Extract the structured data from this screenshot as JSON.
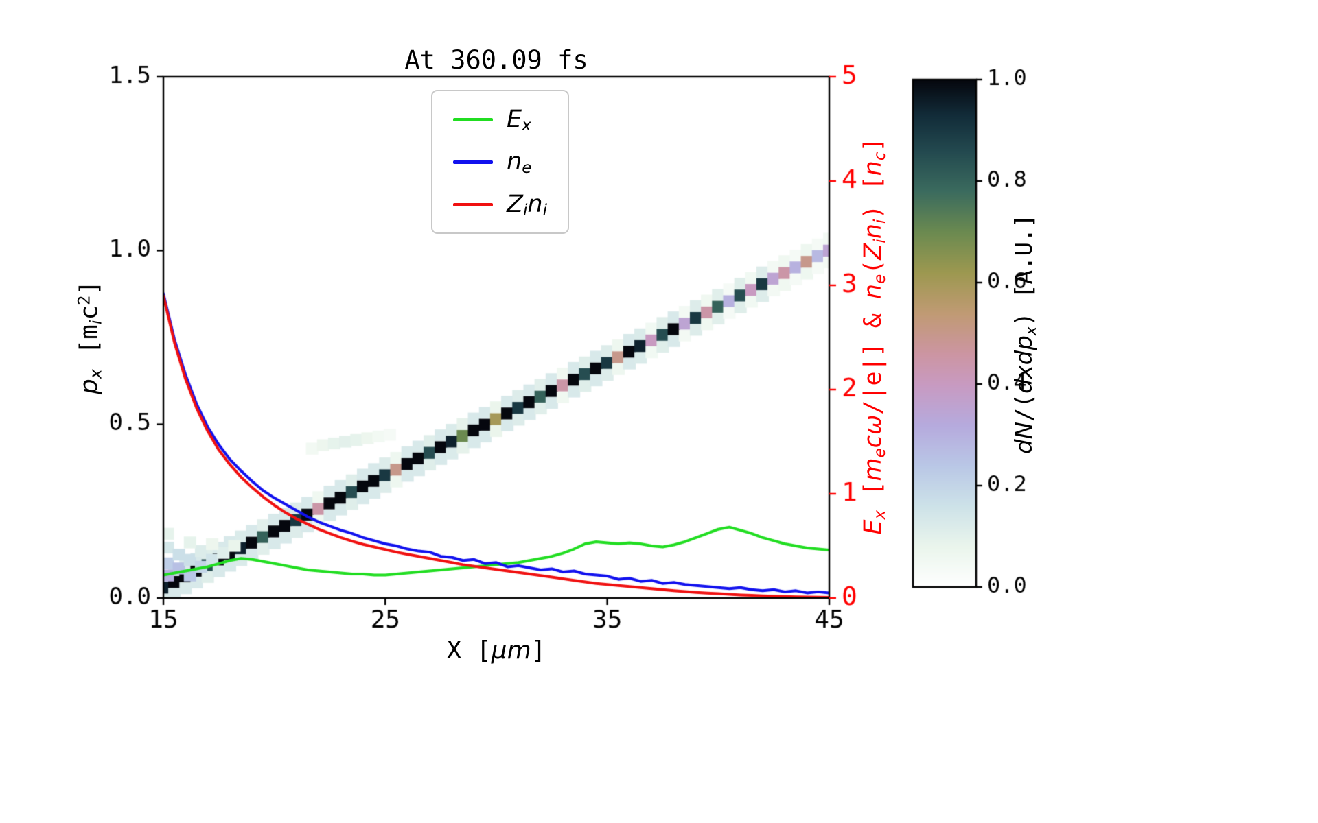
{
  "chart_data": {
    "type": "line+heatmap",
    "title": "At 360.09 fs",
    "x_range": [
      15,
      45
    ],
    "x_ticks": [
      15,
      25,
      35,
      45
    ],
    "x_start": 15,
    "x_step": 0.5,
    "y_left_range": [
      0,
      1.5
    ],
    "y_left_ticks": [
      "0.0",
      "0.5",
      "1.0",
      "1.5"
    ],
    "y_right_range": [
      0,
      5
    ],
    "y_right_ticks": [
      "0",
      "1",
      "2",
      "3",
      "4",
      "5"
    ],
    "axis_colors": {
      "left": "#000000",
      "right": "#ff0000",
      "frame": "#000000"
    },
    "xlabel_rich": [
      {
        "t": "X ["
      },
      {
        "t": "μm",
        "i": 1
      },
      {
        "t": "]"
      }
    ],
    "ylabel_left_rich": [
      {
        "t": "p",
        "i": 1
      },
      {
        "t": "x",
        "i": 1,
        "sub": 1
      },
      {
        "t": " [m"
      },
      {
        "t": "i",
        "i": 1,
        "sub": 1
      },
      {
        "t": "c"
      },
      {
        "t": "2",
        "sup": 1
      },
      {
        "t": "]"
      }
    ],
    "ylabel_right_rich": [
      {
        "t": "E",
        "i": 1
      },
      {
        "t": "x",
        "i": 1,
        "sub": 1
      },
      {
        "t": " ["
      },
      {
        "t": "m",
        "i": 1
      },
      {
        "t": "e",
        "i": 1,
        "sub": 1
      },
      {
        "t": "c",
        "i": 1
      },
      {
        "t": "ω",
        "i": 1
      },
      {
        "t": "/|e|] & "
      },
      {
        "t": "n",
        "i": 1
      },
      {
        "t": "e",
        "i": 1,
        "sub": 1
      },
      {
        "t": "("
      },
      {
        "t": "Z",
        "i": 1
      },
      {
        "t": "i",
        "i": 1,
        "sub": 1
      },
      {
        "t": "n",
        "i": 1
      },
      {
        "t": "i",
        "i": 1,
        "sub": 1
      },
      {
        "t": ") ["
      },
      {
        "t": "n",
        "i": 1
      },
      {
        "t": "c",
        "i": 1,
        "sub": 1
      },
      {
        "t": "]"
      }
    ],
    "legend": [
      {
        "name": "Ex",
        "color": "#21dd21",
        "label_rich": [
          {
            "t": "E",
            "i": 1
          },
          {
            "t": "x",
            "i": 1,
            "sub": 1
          }
        ]
      },
      {
        "name": "ne",
        "color": "#1111ee",
        "label_rich": [
          {
            "t": "n",
            "i": 1
          },
          {
            "t": "e",
            "i": 1,
            "sub": 1
          }
        ]
      },
      {
        "name": "Zini",
        "color": "#f01010",
        "label_rich": [
          {
            "t": "Z",
            "i": 1
          },
          {
            "t": "i",
            "i": 1,
            "sub": 1
          },
          {
            "t": "n",
            "i": 1
          },
          {
            "t": "i",
            "i": 1,
            "sub": 1
          }
        ]
      }
    ],
    "series": [
      {
        "name": "Ex",
        "color": "#21dd21",
        "axis": "right",
        "y": [
          0.22,
          0.24,
          0.26,
          0.28,
          0.3,
          0.33,
          0.36,
          0.38,
          0.37,
          0.35,
          0.33,
          0.31,
          0.29,
          0.27,
          0.26,
          0.25,
          0.24,
          0.23,
          0.23,
          0.22,
          0.22,
          0.23,
          0.24,
          0.25,
          0.26,
          0.27,
          0.28,
          0.29,
          0.3,
          0.31,
          0.32,
          0.33,
          0.34,
          0.36,
          0.38,
          0.4,
          0.43,
          0.47,
          0.52,
          0.54,
          0.53,
          0.52,
          0.53,
          0.52,
          0.5,
          0.49,
          0.51,
          0.54,
          0.58,
          0.62,
          0.66,
          0.68,
          0.65,
          0.62,
          0.58,
          0.55,
          0.52,
          0.5,
          0.48,
          0.47,
          0.46
        ]
      },
      {
        "name": "ne",
        "color": "#1111ee",
        "axis": "right",
        "y": [
          2.92,
          2.48,
          2.14,
          1.86,
          1.64,
          1.47,
          1.33,
          1.22,
          1.12,
          1.03,
          0.96,
          0.9,
          0.84,
          0.78,
          0.73,
          0.69,
          0.65,
          0.62,
          0.58,
          0.55,
          0.52,
          0.5,
          0.47,
          0.45,
          0.44,
          0.4,
          0.39,
          0.36,
          0.37,
          0.33,
          0.34,
          0.3,
          0.31,
          0.29,
          0.27,
          0.28,
          0.25,
          0.26,
          0.23,
          0.22,
          0.21,
          0.18,
          0.19,
          0.16,
          0.17,
          0.14,
          0.15,
          0.13,
          0.12,
          0.11,
          0.1,
          0.09,
          0.1,
          0.08,
          0.07,
          0.08,
          0.06,
          0.07,
          0.05,
          0.06,
          0.05
        ]
      },
      {
        "name": "Zini",
        "color": "#f01010",
        "axis": "right",
        "y": [
          2.9,
          2.45,
          2.1,
          1.82,
          1.6,
          1.42,
          1.28,
          1.16,
          1.06,
          0.97,
          0.89,
          0.82,
          0.76,
          0.71,
          0.66,
          0.62,
          0.58,
          0.545,
          0.515,
          0.49,
          0.465,
          0.44,
          0.42,
          0.4,
          0.38,
          0.36,
          0.34,
          0.32,
          0.305,
          0.29,
          0.275,
          0.26,
          0.245,
          0.23,
          0.215,
          0.2,
          0.185,
          0.17,
          0.155,
          0.14,
          0.13,
          0.12,
          0.11,
          0.1,
          0.09,
          0.08,
          0.07,
          0.062,
          0.055,
          0.048,
          0.042,
          0.036,
          0.03,
          0.026,
          0.022,
          0.018,
          0.015,
          0.012,
          0.01,
          0.008,
          0.007
        ]
      }
    ],
    "heatmap": {
      "x_start": 15,
      "x_step": 0.5,
      "y_start": 0.03,
      "y_end": 1.0,
      "fringe_factor": 0.13,
      "band_values": [
        0.95,
        1,
        1,
        1,
        0.85,
        1,
        1,
        0.95,
        1,
        0.8,
        1,
        1,
        0.9,
        1,
        0.45,
        1,
        1,
        0.85,
        1,
        1,
        0.9,
        0.5,
        1,
        1,
        0.85,
        1,
        0.95,
        0.7,
        1,
        1,
        0.6,
        1,
        0.9,
        1,
        0.8,
        1,
        0.45,
        1,
        0.85,
        1,
        0.9,
        0.5,
        1,
        0.95,
        0.4,
        0.85,
        1,
        0.35,
        0.9,
        0.45,
        0.8,
        0.3,
        0.85,
        0.4,
        0.9,
        0.35,
        0.45,
        0.3,
        0.5,
        0.28,
        0.35
      ],
      "extra_cells": [
        [
          15.2,
          0.065,
          0.3
        ],
        [
          15.2,
          0.1,
          0.22
        ],
        [
          15.2,
          0.145,
          0.14
        ],
        [
          15.7,
          0.085,
          0.26
        ],
        [
          15.7,
          0.125,
          0.17
        ],
        [
          16.2,
          0.065,
          0.24
        ],
        [
          16.2,
          0.11,
          0.17
        ],
        [
          16.7,
          0.09,
          0.2
        ],
        [
          16.7,
          0.135,
          0.12
        ],
        [
          17.2,
          0.11,
          0.15
        ],
        [
          17.7,
          0.13,
          0.11
        ],
        [
          15.2,
          0.185,
          0.09
        ],
        [
          16.2,
          0.16,
          0.09
        ],
        [
          17.2,
          0.155,
          0.07
        ],
        [
          18.2,
          0.15,
          0.08
        ],
        [
          21.7,
          0.43,
          0.05
        ],
        [
          22.2,
          0.44,
          0.07
        ],
        [
          22.7,
          0.445,
          0.09
        ],
        [
          23.2,
          0.45,
          0.1
        ],
        [
          23.7,
          0.455,
          0.09
        ],
        [
          24.2,
          0.46,
          0.07
        ],
        [
          24.7,
          0.465,
          0.05
        ],
        [
          25.2,
          0.47,
          0.04
        ]
      ]
    },
    "colorbar": {
      "ticks": [
        "0.0",
        "0.2",
        "0.4",
        "0.6",
        "0.8",
        "1.0"
      ],
      "label_rich": [
        {
          "t": "dN",
          "i": 1
        },
        {
          "t": "/("
        },
        {
          "t": "dxdp",
          "i": 1
        },
        {
          "t": "x",
          "i": 1,
          "sub": 1
        },
        {
          "t": ") [A.U.]"
        }
      ],
      "colormap_stops": [
        [
          0.0,
          "#ffffff"
        ],
        [
          0.08,
          "#eaf5ec"
        ],
        [
          0.16,
          "#cde2e8"
        ],
        [
          0.24,
          "#b9c7e6"
        ],
        [
          0.32,
          "#b6aadd"
        ],
        [
          0.4,
          "#c89ac1"
        ],
        [
          0.46,
          "#cc95a2"
        ],
        [
          0.54,
          "#c09a74"
        ],
        [
          0.62,
          "#9d9850"
        ],
        [
          0.7,
          "#6b8a50"
        ],
        [
          0.78,
          "#3b6b5e"
        ],
        [
          0.86,
          "#23494f"
        ],
        [
          0.93,
          "#122c39"
        ],
        [
          1.0,
          "#05070e"
        ]
      ]
    }
  }
}
